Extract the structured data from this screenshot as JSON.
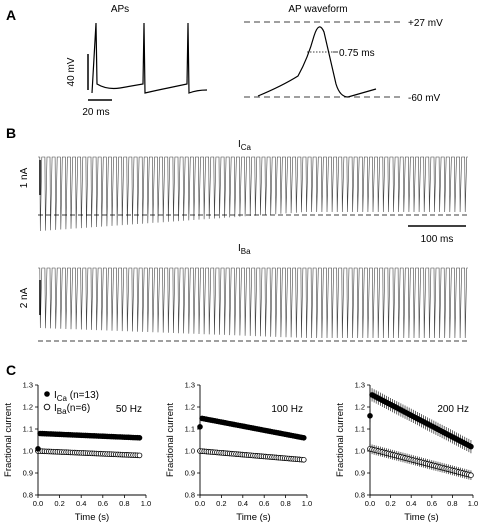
{
  "panel_letters": {
    "a": "A",
    "b": "B",
    "c": "C"
  },
  "panelA": {
    "aps_title": "APs",
    "scale_v": "40 mV",
    "scale_t": "20 ms",
    "waveform_title": "AP waveform",
    "peak_label": "+27 mV",
    "rest_label": "-60 mV",
    "half_width_label": "0.75 ms"
  },
  "panelB": {
    "ica_base": "I",
    "ica_sub": "Ca",
    "ica_scale": "1 nA",
    "time_scale": "100 ms",
    "iba_base": "I",
    "iba_sub": "Ba",
    "iba_scale": "2 nA"
  },
  "panelC": {
    "legend": {
      "ca_base": "I",
      "ca_sub": "Ca",
      "ca_suffix": " (n=13)",
      "ba_base": "I",
      "ba_sub": "Ba",
      "ba_suffix": "(n=6)"
    }
  },
  "chart_data": [
    {
      "type": "scatter",
      "title": "50 Hz",
      "xlabel": "Time (s)",
      "ylabel": "Fractional current",
      "xlim": [
        0.0,
        1.0
      ],
      "ylim": [
        0.8,
        1.3
      ],
      "xticks": [
        "0.0",
        "0.2",
        "0.4",
        "0.6",
        "0.8",
        "1.0"
      ],
      "yticks": [
        "0.8",
        "0.9",
        "1.0",
        "1.1",
        "1.2",
        "1.3"
      ],
      "series": [
        {
          "name": "ICa (n=13)",
          "marker": "filled-circle",
          "x_start": 0.0,
          "x_end": 0.94,
          "n_points": 48,
          "first_value": 1.01,
          "start_value": 1.08,
          "end_value": 1.06
        },
        {
          "name": "IBa(n=6)",
          "marker": "open-circle",
          "x_start": 0.0,
          "x_end": 0.94,
          "n_points": 48,
          "first_value": 1.0,
          "start_value": 1.0,
          "end_value": 0.98
        }
      ]
    },
    {
      "type": "scatter",
      "title": "100 Hz",
      "xlabel": "Time (s)",
      "ylabel": "Fractional current",
      "xlim": [
        0.0,
        1.0
      ],
      "ylim": [
        0.8,
        1.3
      ],
      "xticks": [
        "0.0",
        "0.2",
        "0.4",
        "0.6",
        "0.8",
        "1.0"
      ],
      "yticks": [
        "0.8",
        "0.9",
        "1.0",
        "1.1",
        "1.2",
        "1.3"
      ],
      "series": [
        {
          "name": "ICa (n=13)",
          "marker": "filled-circle",
          "x_start": 0.0,
          "x_end": 0.97,
          "n_points": 50,
          "first_value": 1.11,
          "start_value": 1.15,
          "end_value": 1.06
        },
        {
          "name": "IBa(n=6)",
          "marker": "open-circle",
          "x_start": 0.0,
          "x_end": 0.97,
          "n_points": 50,
          "first_value": 1.0,
          "start_value": 1.0,
          "end_value": 0.96
        }
      ]
    },
    {
      "type": "scatter",
      "title": "200 Hz",
      "xlabel": "Time (s)",
      "ylabel": "Fractional current",
      "xlim": [
        0.0,
        1.0
      ],
      "ylim": [
        0.8,
        1.3
      ],
      "xticks": [
        "0.0",
        "0.2",
        "0.4",
        "0.6",
        "0.8",
        "1.0"
      ],
      "yticks": [
        "0.8",
        "0.9",
        "1.0",
        "1.1",
        "1.2",
        "1.3"
      ],
      "series": [
        {
          "name": "ICa (n=13)",
          "marker": "filled-circle",
          "x_start": 0.0,
          "x_end": 0.98,
          "n_points": 50,
          "first_value": 1.16,
          "start_value": 1.26,
          "end_value": 1.02
        },
        {
          "name": "IBa(n=6)",
          "marker": "open-circle",
          "x_start": 0.0,
          "x_end": 0.98,
          "n_points": 50,
          "first_value": 1.01,
          "start_value": 1.01,
          "end_value": 0.89
        }
      ]
    }
  ]
}
